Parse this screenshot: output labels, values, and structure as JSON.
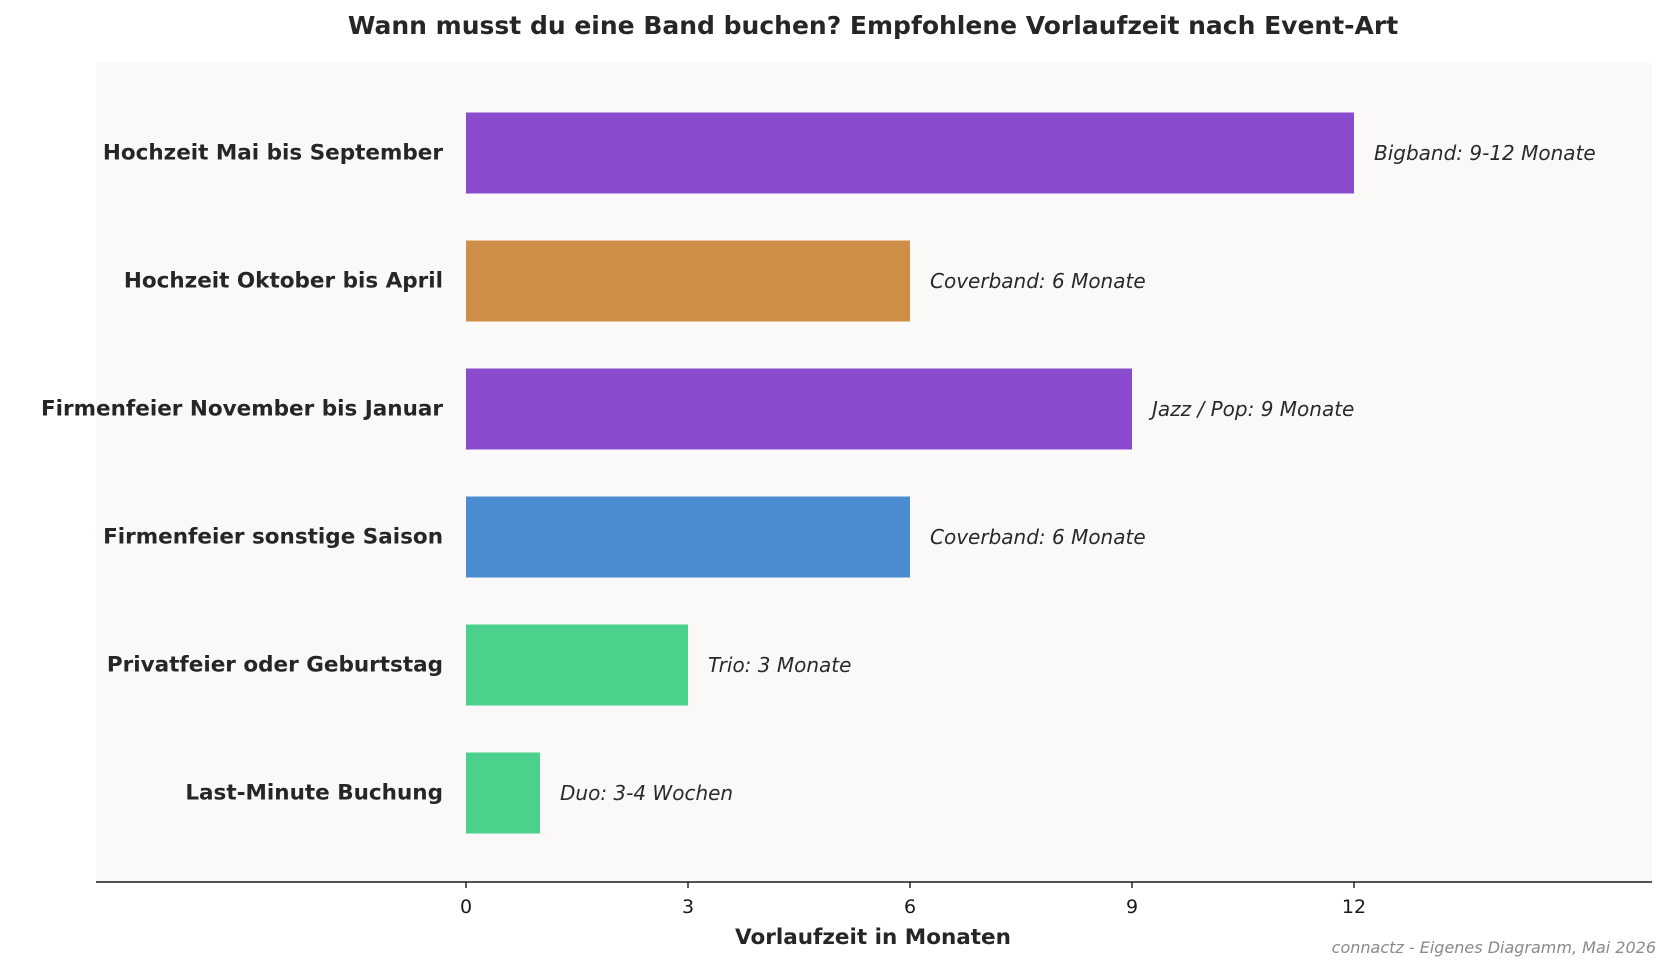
{
  "chart_data": {
    "type": "bar",
    "orientation": "horizontal",
    "title": "Wann musst du eine Band buchen?  Empfohlene Vorlaufzeit nach Event-Art",
    "xlabel": "Vorlaufzeit in Monaten",
    "ylabel": "",
    "xlim": [
      0,
      12
    ],
    "xticks": [
      "0",
      "3",
      "6",
      "9",
      "12"
    ],
    "grid": false,
    "source": "connactz - Eigenes Diagramm, Mai 2026",
    "bars": [
      {
        "category": "Hochzeit Mai bis September",
        "value": 12,
        "label": "Bigband: 9-12 Monate",
        "color": "#8a4bcf"
      },
      {
        "category": "Hochzeit Oktober bis April",
        "value": 6,
        "label": "Coverband: 6 Monate",
        "color": "#cf8e47"
      },
      {
        "category": "Firmenfeier November bis Januar",
        "value": 9,
        "label": "Jazz / Pop: 9 Monate",
        "color": "#8a4bcf"
      },
      {
        "category": "Firmenfeier sonstige Saison",
        "value": 6,
        "label": "Coverband: 6 Monate",
        "color": "#4a8cd0"
      },
      {
        "category": "Privatfeier oder Geburtstag",
        "value": 3,
        "label": "Trio: 3 Monate",
        "color": "#4cd18d"
      },
      {
        "category": "Last-Minute Buchung",
        "value": 1,
        "label": "Duo: 3-4 Wochen",
        "color": "#4cd18d"
      }
    ]
  }
}
